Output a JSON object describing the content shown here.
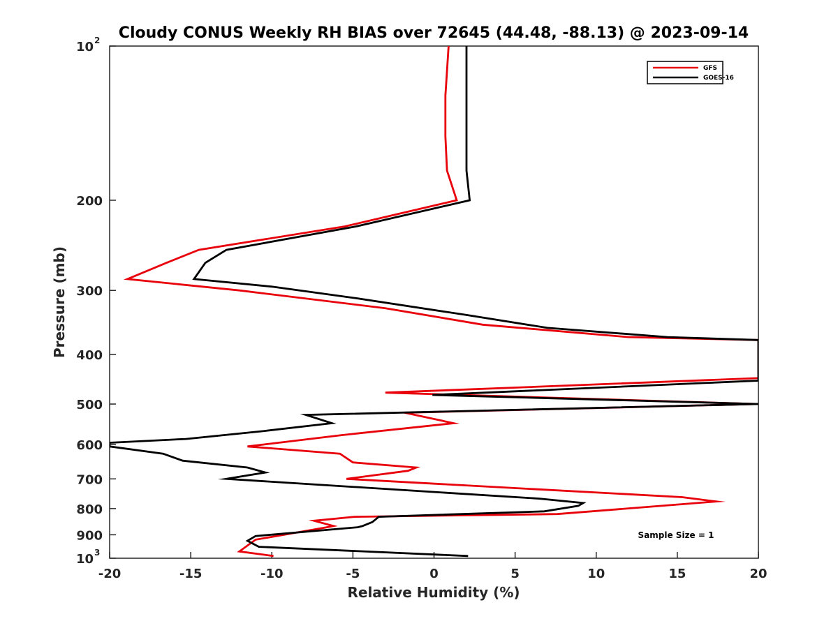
{
  "chart_data": {
    "type": "line",
    "title": "Cloudy CONUS Weekly RH BIAS over 72645 (44.48, -88.13) @ 2023-09-14",
    "xlabel": "Relative Humidity (%)",
    "ylabel": "Pressure (mb)",
    "xlim": [
      -20,
      20
    ],
    "ylim": [
      100,
      1000
    ],
    "y_scale": "log",
    "y_reversed": true,
    "x_ticks": [
      "-20",
      "-15",
      "-10",
      "-5",
      "0",
      "5",
      "10",
      "15",
      "20"
    ],
    "y_ticks": [
      {
        "value": 100,
        "base": "10",
        "exp": "2"
      },
      {
        "value": 200,
        "label": "200"
      },
      {
        "value": 300,
        "label": "300"
      },
      {
        "value": 400,
        "label": "400"
      },
      {
        "value": 500,
        "label": "500"
      },
      {
        "value": 600,
        "label": "600"
      },
      {
        "value": 700,
        "label": "700"
      },
      {
        "value": 800,
        "label": "800"
      },
      {
        "value": 900,
        "label": "900"
      },
      {
        "value": 1000,
        "base": "10",
        "exp": "3"
      }
    ],
    "grid": false,
    "legend_position": "top-right",
    "annotation": "Sample Size = 1",
    "series": [
      {
        "name": "GFS",
        "color": "#e8000b",
        "points": [
          [
            0.9,
            100
          ],
          [
            0.7,
            125
          ],
          [
            0.7,
            150
          ],
          [
            0.8,
            175
          ],
          [
            1.4,
            200
          ],
          [
            -5.5,
            225
          ],
          [
            -14.5,
            250
          ],
          [
            -16.5,
            265
          ],
          [
            -18.9,
            285
          ],
          [
            -12,
            300
          ],
          [
            -3,
            325
          ],
          [
            3,
            350
          ],
          [
            12,
            370
          ],
          [
            20,
            375
          ],
          [
            20,
            445
          ],
          [
            -3,
            475
          ],
          [
            19.9,
            500
          ],
          [
            -1.8,
            520
          ],
          [
            1.2,
            545
          ],
          [
            -5.7,
            575
          ],
          [
            -11.5,
            605
          ],
          [
            -5.8,
            625
          ],
          [
            -5,
            650
          ],
          [
            -1.1,
            665
          ],
          [
            -1.6,
            675
          ],
          [
            -5.4,
            700
          ],
          [
            15.3,
            760
          ],
          [
            17.4,
            775
          ],
          [
            7.6,
            820
          ],
          [
            -4.9,
            830
          ],
          [
            -7.4,
            845
          ],
          [
            -6.2,
            865
          ],
          [
            -6.6,
            870
          ],
          [
            -11,
            920
          ],
          [
            -12,
            970
          ],
          [
            -9.9,
            990
          ]
        ]
      },
      {
        "name": "GOES-16",
        "color": "#000000",
        "points": [
          [
            2,
            100
          ],
          [
            2,
            125
          ],
          [
            2,
            150
          ],
          [
            2,
            175
          ],
          [
            2.2,
            200
          ],
          [
            -4.8,
            225
          ],
          [
            -12.8,
            250
          ],
          [
            -14.1,
            265
          ],
          [
            -14.8,
            285
          ],
          [
            -10,
            295
          ],
          [
            -5,
            310
          ],
          [
            2,
            335
          ],
          [
            7,
            355
          ],
          [
            14.4,
            370
          ],
          [
            20,
            375
          ],
          [
            20,
            450
          ],
          [
            -0.1,
            480
          ],
          [
            20,
            500
          ],
          [
            -7.9,
            525
          ],
          [
            -6.3,
            545
          ],
          [
            -10.6,
            565
          ],
          [
            -15.3,
            585
          ],
          [
            -20,
            595
          ],
          [
            -20,
            605
          ],
          [
            -16.7,
            625
          ],
          [
            -15.5,
            645
          ],
          [
            -11.5,
            665
          ],
          [
            -10.4,
            680
          ],
          [
            -12.8,
            700
          ],
          [
            6.5,
            765
          ],
          [
            9.2,
            780
          ],
          [
            8.9,
            790
          ],
          [
            6.8,
            810
          ],
          [
            -3.4,
            830
          ],
          [
            -3.8,
            850
          ],
          [
            -4.4,
            865
          ],
          [
            -4.7,
            870
          ],
          [
            -11,
            905
          ],
          [
            -11.5,
            925
          ],
          [
            -10.8,
            950
          ],
          [
            2.1,
            990
          ]
        ]
      }
    ]
  }
}
